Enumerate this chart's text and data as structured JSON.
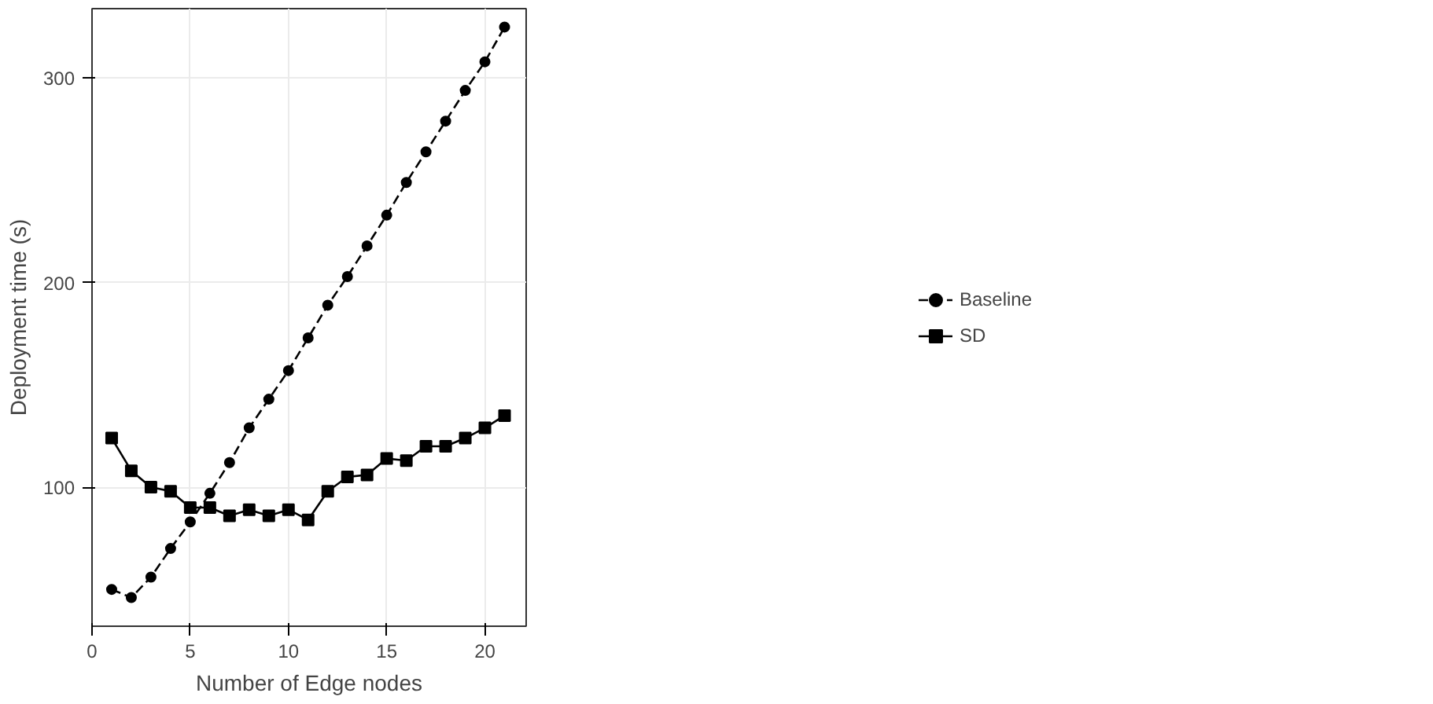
{
  "chart_data": {
    "type": "line",
    "xlabel": "Number of Edge nodes",
    "ylabel": "Deployment time (s)",
    "x": [
      1,
      2,
      3,
      4,
      5,
      6,
      7,
      8,
      9,
      10,
      11,
      12,
      13,
      14,
      15,
      16,
      17,
      18,
      19,
      20,
      21
    ],
    "series": [
      {
        "name": "Baseline",
        "color": "#000000",
        "marker": "circle",
        "line_style": "dashed",
        "values": [
          50,
          46,
          56,
          70,
          83,
          97,
          112,
          129,
          143,
          157,
          173,
          189,
          203,
          218,
          233,
          249,
          264,
          279,
          294,
          308,
          325
        ]
      },
      {
        "name": "SD",
        "color": "#000000",
        "marker": "square",
        "line_style": "solid",
        "values": [
          124,
          108,
          100,
          98,
          90,
          90,
          86,
          89,
          86,
          89,
          84,
          98,
          105,
          106,
          114,
          113,
          120,
          120,
          124,
          129,
          135
        ]
      }
    ],
    "xlim": [
      0,
      22.1
    ],
    "ylim": [
      32,
      334
    ],
    "xticks": [
      0,
      5,
      10,
      15,
      20
    ],
    "yticks": [
      100,
      200,
      300
    ],
    "grid": true,
    "legend": "right"
  }
}
